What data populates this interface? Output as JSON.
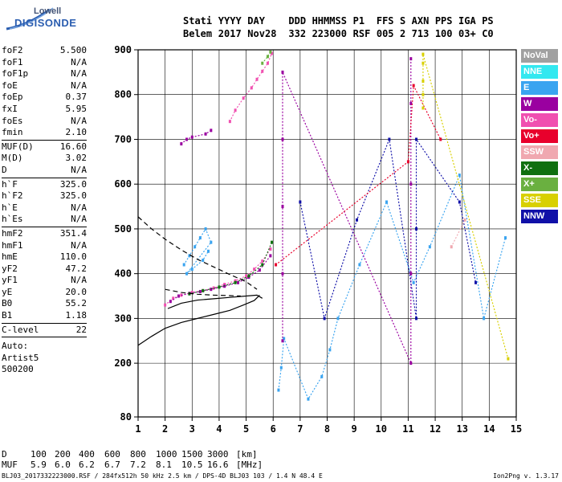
{
  "logo": {
    "line1": "Lowell",
    "line2": "DIGISONDE"
  },
  "header": {
    "labels": [
      "Stati",
      "YYYY",
      "DAY",
      "DDD",
      "HHMMSS",
      "P1",
      "FFS",
      "S",
      "AXN",
      "PPS",
      "IGA",
      "PS"
    ],
    "values": [
      "Belem",
      "2017",
      "Nov28",
      "332",
      "223000",
      "RSF",
      "005",
      "2",
      "713",
      "100",
      "03+",
      "C0"
    ]
  },
  "params": [
    [
      {
        "name": "foF2",
        "value": "5.500"
      },
      {
        "name": "foF1",
        "value": "N/A"
      },
      {
        "name": "foF1p",
        "value": "N/A"
      },
      {
        "name": "foE",
        "value": "N/A"
      },
      {
        "name": "foEp",
        "value": "0.37"
      },
      {
        "name": "fxI",
        "value": "5.95"
      },
      {
        "name": "foEs",
        "value": "N/A"
      },
      {
        "name": "fmin",
        "value": "2.10"
      }
    ],
    [
      {
        "name": "MUF(D)",
        "value": "16.60"
      },
      {
        "name": "M(D)",
        "value": "3.02"
      },
      {
        "name": "D",
        "value": "N/A"
      }
    ],
    [
      {
        "name": "h`F",
        "value": "325.0"
      },
      {
        "name": "h`F2",
        "value": "325.0"
      },
      {
        "name": "h`E",
        "value": "N/A"
      },
      {
        "name": "h`Es",
        "value": "N/A"
      }
    ],
    [
      {
        "name": "hmF2",
        "value": "351.4"
      },
      {
        "name": "hmF1",
        "value": "N/A"
      },
      {
        "name": "hmE",
        "value": "110.0"
      },
      {
        "name": "yF2",
        "value": "47.2"
      },
      {
        "name": "yF1",
        "value": "N/A"
      },
      {
        "name": "yE",
        "value": "20.0"
      },
      {
        "name": "B0",
        "value": "55.2"
      },
      {
        "name": "B1",
        "value": "1.18"
      }
    ],
    [
      {
        "name": "C-level",
        "value": "22"
      }
    ]
  ],
  "auto": {
    "label": "Auto:",
    "program": "Artist5",
    "version": "500200"
  },
  "legend": [
    {
      "label": "NoVal",
      "color": "#a0a0a0"
    },
    {
      "label": "NNE",
      "color": "#33e8f0"
    },
    {
      "label": "E",
      "color": "#3aa4f0"
    },
    {
      "label": "W",
      "color": "#9a00a0"
    },
    {
      "label": "Vo-",
      "color": "#f050b0"
    },
    {
      "label": "Vo+",
      "color": "#e8002c"
    },
    {
      "label": "SSW",
      "color": "#f0a8b0"
    },
    {
      "label": "X-",
      "color": "#107010"
    },
    {
      "label": "X+",
      "color": "#6ab040"
    },
    {
      "label": "SSE",
      "color": "#d8d000"
    },
    {
      "label": "NNW",
      "color": "#1010a8"
    }
  ],
  "bottom": {
    "d_label": "D",
    "d_values": [
      "100",
      "200",
      "400",
      "600",
      "800",
      "1000",
      "1500",
      "3000",
      "[km]"
    ],
    "muf_label": "MUF",
    "muf_values": [
      "5.9",
      "6.0",
      "6.2",
      "6.7",
      "7.2",
      "8.1",
      "10.5",
      "16.6",
      "[MHz]"
    ]
  },
  "footer": {
    "text": "BLJ03_2017332223000.RSF / 284fx512h 50 kHz 2.5 km / DPS-4D BLJ03 103 / 1.4 N 48.4 E",
    "version": "Ion2Png v. 1.3.17"
  },
  "chart_data": {
    "type": "scatter",
    "xlim": [
      1,
      15
    ],
    "ylim": [
      80,
      900
    ],
    "xticks": [
      1,
      2,
      3,
      4,
      5,
      6,
      7,
      8,
      9,
      10,
      11,
      12,
      13,
      14,
      15
    ],
    "yticks": [
      80,
      200,
      300,
      400,
      500,
      600,
      700,
      800,
      900
    ],
    "grid": true,
    "xlabel": "",
    "ylabel": "",
    "curves": [
      {
        "name": "",
        "style": "solid",
        "x": [
          1.0,
          1.5,
          2.0,
          2.6,
          3.2,
          3.8,
          4.4,
          4.9,
          5.3,
          5.5
        ],
        "y": [
          240,
          260,
          278,
          291,
          300,
          309,
          318,
          330,
          340,
          352
        ]
      },
      {
        "name": "",
        "style": "solid",
        "x": [
          2.1,
          2.6,
          3.2,
          3.8,
          4.4,
          5.0,
          5.4,
          5.6
        ],
        "y": [
          322,
          334,
          341,
          344,
          347,
          350,
          352,
          345
        ]
      },
      {
        "name": "",
        "style": "dashed",
        "x": [
          1.0,
          1.5,
          2.0,
          2.6,
          3.2,
          3.8,
          4.4,
          5.0,
          5.4
        ],
        "y": [
          527,
          500,
          477,
          453,
          432,
          415,
          398,
          382,
          365
        ]
      },
      {
        "name": "",
        "style": "dashed",
        "x": [
          2.0,
          2.6,
          3.2,
          3.8,
          4.4,
          4.8
        ],
        "y": [
          365,
          358,
          354,
          352,
          351,
          350
        ]
      }
    ],
    "traces": [
      {
        "color": "#f050b0",
        "x": [
          2.0,
          2.3,
          2.6,
          3.0,
          3.4,
          3.8,
          4.2,
          4.6,
          5.0,
          5.3,
          5.6,
          5.9
        ],
        "y": [
          330,
          345,
          352,
          358,
          362,
          368,
          376,
          384,
          395,
          410,
          428,
          455
        ]
      },
      {
        "color": "#f050b0",
        "x": [
          4.4,
          4.6,
          4.9,
          5.2,
          5.4,
          5.6,
          5.8,
          5.95
        ],
        "y": [
          740,
          765,
          792,
          815,
          834,
          852,
          870,
          892
        ]
      },
      {
        "color": "#9a00a0",
        "x": [
          2.2,
          2.5,
          2.9,
          3.3,
          3.7,
          4.2,
          4.7,
          5.1,
          5.5,
          5.9
        ],
        "y": [
          338,
          350,
          356,
          360,
          365,
          372,
          380,
          392,
          408,
          440
        ]
      },
      {
        "color": "#9a00a0",
        "x": [
          2.6,
          2.8,
          3.0,
          3.5,
          3.7
        ],
        "y": [
          690,
          700,
          705,
          712,
          720
        ]
      },
      {
        "color": "#3aa4f0",
        "x": [
          2.7,
          2.9,
          3.1,
          3.3,
          3.5,
          3.7,
          2.8,
          3.0,
          3.4,
          3.6
        ],
        "y": [
          420,
          440,
          460,
          480,
          500,
          470,
          400,
          410,
          430,
          450
        ]
      },
      {
        "color": "#107010",
        "x": [
          2.9,
          3.4,
          4.0,
          4.6,
          5.1,
          5.6,
          5.95
        ],
        "y": [
          355,
          362,
          370,
          380,
          395,
          420,
          470
        ]
      },
      {
        "color": "#6ab040",
        "x": [
          5.6,
          5.8,
          5.9
        ],
        "y": [
          870,
          885,
          895
        ]
      },
      {
        "color": "#3aa4f0",
        "x": [
          6.2,
          6.3,
          6.4,
          7.3,
          7.8,
          8.1,
          8.4,
          9.2,
          10.2,
          11.2,
          11.8,
          12.9,
          13.8,
          14.6
        ],
        "y": [
          140,
          190,
          255,
          120,
          170,
          230,
          300,
          420,
          560,
          380,
          460,
          620,
          300,
          480
        ]
      },
      {
        "color": "#9a00a0",
        "x": [
          6.35,
          6.35,
          6.35,
          6.35,
          6.35,
          11.1,
          11.1,
          11.1,
          11.1,
          11.1
        ],
        "y": [
          250,
          400,
          550,
          700,
          850,
          200,
          400,
          600,
          780,
          880
        ]
      },
      {
        "color": "#1010a8",
        "x": [
          7.0,
          7.9,
          9.1,
          10.3,
          11.3,
          11.3,
          11.3,
          12.9,
          13.5
        ],
        "y": [
          560,
          300,
          520,
          700,
          300,
          500,
          700,
          560,
          380
        ]
      },
      {
        "color": "#e8002c",
        "x": [
          6.1,
          11.0,
          11.2,
          12.2
        ],
        "y": [
          420,
          650,
          820,
          700
        ]
      },
      {
        "color": "#d8d000",
        "x": [
          11.55,
          11.55,
          11.55,
          11.55,
          11.55,
          14.7
        ],
        "y": [
          770,
          800,
          830,
          870,
          890,
          210
        ]
      },
      {
        "color": "#f0a8b0",
        "x": [
          12.6,
          13.1
        ],
        "y": [
          460,
          520
        ]
      }
    ]
  }
}
